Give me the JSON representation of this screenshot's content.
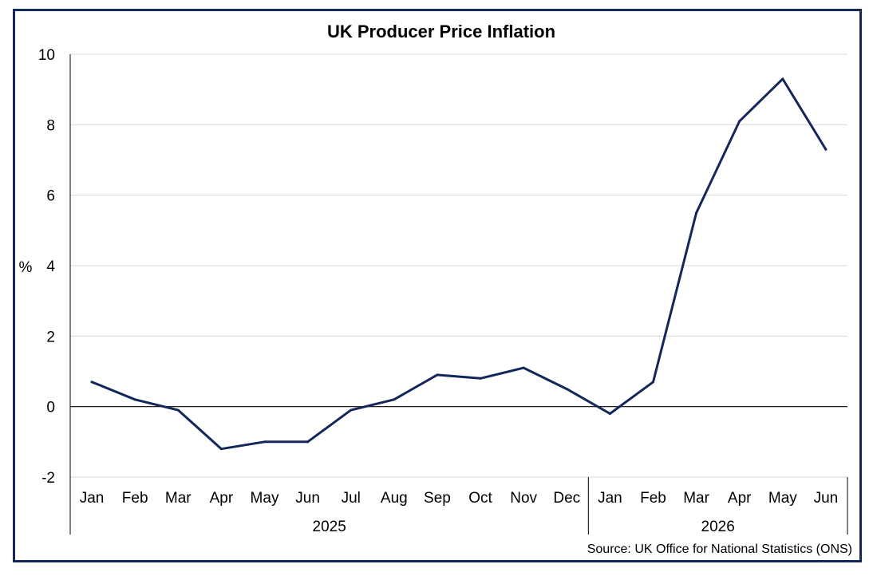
{
  "chart_data": {
    "type": "line",
    "title": "UK Producer Price Inflation",
    "ylabel": "%",
    "xlabel": "",
    "ylim": [
      -2,
      10
    ],
    "yticks": [
      -2,
      0,
      2,
      4,
      6,
      8,
      10
    ],
    "categories": [
      "Jan",
      "Feb",
      "Mar",
      "Apr",
      "May",
      "Jun",
      "Jul",
      "Aug",
      "Sep",
      "Oct",
      "Nov",
      "Dec",
      "Jan",
      "Feb",
      "Mar",
      "Apr",
      "May",
      "Jun"
    ],
    "year_groups": [
      {
        "label": "2025",
        "count": 12
      },
      {
        "label": "2026",
        "count": 6
      }
    ],
    "series": [
      {
        "values": [
          0.7,
          0.2,
          -0.1,
          -1.2,
          -1.0,
          -1.0,
          -0.1,
          0.2,
          0.9,
          0.8,
          1.1,
          0.5,
          -0.2,
          0.7,
          5.5,
          8.1,
          9.3,
          7.3
        ],
        "color": "#13275a"
      }
    ],
    "grid": true,
    "source": "Source: UK Office for National Statistics (ONS)"
  }
}
